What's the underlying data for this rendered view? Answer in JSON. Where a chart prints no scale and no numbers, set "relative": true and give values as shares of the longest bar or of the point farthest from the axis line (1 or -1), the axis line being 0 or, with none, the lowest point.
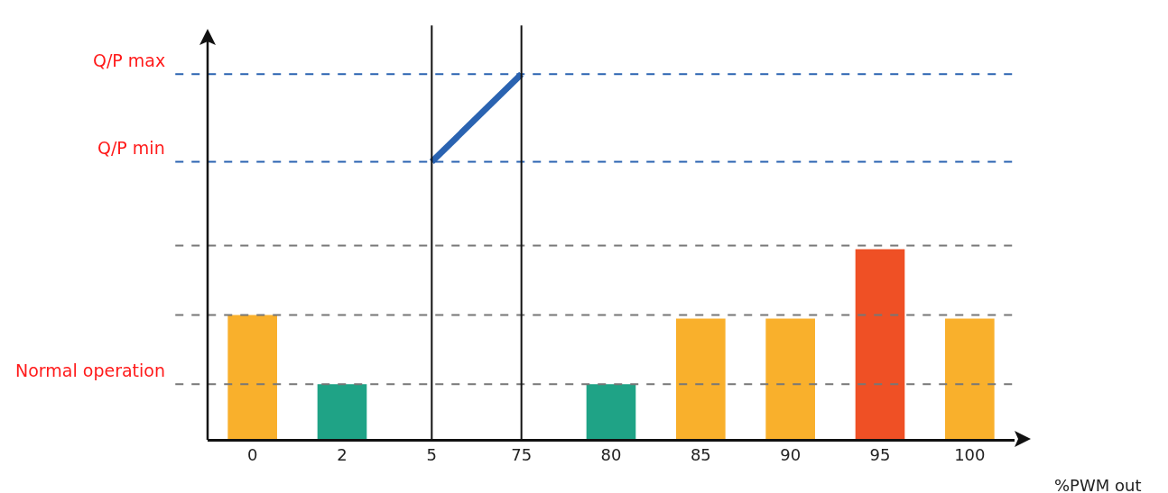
{
  "chart_data": {
    "type": "bar",
    "relative": true,
    "xlabel": "%PWM out",
    "categories": [
      "0",
      "2",
      "5",
      "75",
      "80",
      "85",
      "90",
      "95",
      "100"
    ],
    "series": [
      {
        "colors": [
          "#f9b02c",
          "#1fa386",
          null,
          null,
          "#1fa386",
          "#f9b02c",
          "#f9b02c",
          "#ef5025",
          "#f9b02c"
        ],
        "values": [
          0.34,
          0.15,
          null,
          null,
          0.15,
          0.33,
          0.33,
          0.52,
          0.33
        ]
      },
      {
        "type": "line",
        "color": "#2a63b1",
        "values": [
          null,
          null,
          0.76,
          1,
          null,
          null,
          null,
          null,
          null
        ]
      }
    ],
    "ref_lines": [
      {
        "axis": "y",
        "value": 1,
        "label": "Q/P max",
        "color": "#2a63b1",
        "line_style": "dashed"
      },
      {
        "axis": "y",
        "value": 0.76,
        "label": "Q/P min",
        "color": "#2a63b1",
        "line_style": "dashed"
      },
      {
        "axis": "y",
        "value": 0.53,
        "color": "#777777",
        "line_style": "dashed"
      },
      {
        "axis": "y",
        "value": 0.34,
        "color": "#777777",
        "line_style": "dashed"
      },
      {
        "axis": "y",
        "value": 0.15,
        "label": "Normal operation",
        "color": "#777777",
        "line_style": "dashed"
      },
      {
        "axis": "x",
        "value": "5",
        "color": "#111111",
        "line_style": "solid"
      },
      {
        "axis": "x",
        "value": "75",
        "color": "#111111",
        "line_style": "solid"
      }
    ],
    "grid": false
  }
}
